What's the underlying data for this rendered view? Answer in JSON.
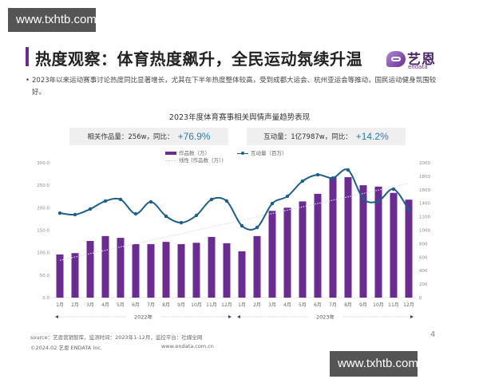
{
  "watermark": "www.txhtb.com",
  "header": {
    "title": "热度观察：体育热度飙升，全民运动氛续升温",
    "logo_cn": "艺恩",
    "logo_en": "endata"
  },
  "bullet": "2023年以来运动赛事讨论热度同比显著增长，尤其在下半年热度整体较高，受到成都大运会、杭州亚运会等推动，国民运动健身氛围较好。",
  "kpis": [
    {
      "label": "相关作品量：256w，同比：",
      "value": "+76.9%"
    },
    {
      "label": "互动量：1亿7987w，同比：",
      "value": "+14.2%"
    }
  ],
  "legend": {
    "bars": "作品数（万）",
    "line": "互动量（百万）",
    "trend": "线性 (作品数（万）)"
  },
  "footer": {
    "source": "source：艺恩营销智库，监测时间：2023年1-12月，监控平台：社媒全网",
    "copyright": "©2024.02  艺恩 ENDATA Inc.",
    "website": "www.endata.com.cn",
    "page": "4"
  },
  "colors": {
    "bar": "#6a2c91",
    "line": "#1f5f86",
    "accent": "#6a2c91",
    "kpi_value": "#2a7cb6"
  },
  "chart_data": {
    "type": "bar",
    "title": "2023年度体育赛事相关舆情声量趋势表现",
    "categories": [
      "1月",
      "2月",
      "3月",
      "4月",
      "5月",
      "6月",
      "7月",
      "8月",
      "9月",
      "10月",
      "11月",
      "12月",
      "1月",
      "2月",
      "3月",
      "4月",
      "5月",
      "6月",
      "7月",
      "8月",
      "9月",
      "10月",
      "11月",
      "12月"
    ],
    "year_groups": [
      {
        "label": "2022年",
        "start": 0,
        "end": 11
      },
      {
        "label": "2023年",
        "start": 12,
        "end": 23
      }
    ],
    "series": [
      {
        "name": "作品数（万）",
        "type": "bar",
        "axis": "left",
        "values": [
          96,
          99,
          126,
          137,
          133,
          119,
          119,
          124,
          119,
          122,
          135,
          121,
          103,
          137,
          193,
          200,
          214,
          231,
          268,
          268,
          250,
          247,
          233,
          218
        ]
      },
      {
        "name": "互动量（百万）",
        "type": "line",
        "axis": "right",
        "values": [
          1254,
          1231,
          1314,
          1432,
          1456,
          1243,
          1420,
          1207,
          1112,
          1219,
          1456,
          1432,
          1065,
          1041,
          1396,
          1503,
          1728,
          1822,
          1775,
          1893,
          1467,
          1432,
          1609,
          1302
        ]
      },
      {
        "name": "线性 (作品数（万）)",
        "type": "trendline",
        "axis": "left",
        "values": [
          83,
          254
        ]
      }
    ],
    "y_left": {
      "min": 0,
      "max": 300,
      "ticks": [
        "0.0",
        "50.0",
        "100.0",
        "150.0",
        "200.0",
        "250.0",
        "300.0"
      ]
    },
    "y_right": {
      "min": 0,
      "max": 2000,
      "ticks": [
        "0",
        "200",
        "400",
        "600",
        "800",
        "1000",
        "1200",
        "1400",
        "1600",
        "1800",
        "2000"
      ]
    },
    "xlabel": "",
    "ylabel_left": "",
    "ylabel_right": "",
    "grid": false,
    "legend_position": "top"
  }
}
